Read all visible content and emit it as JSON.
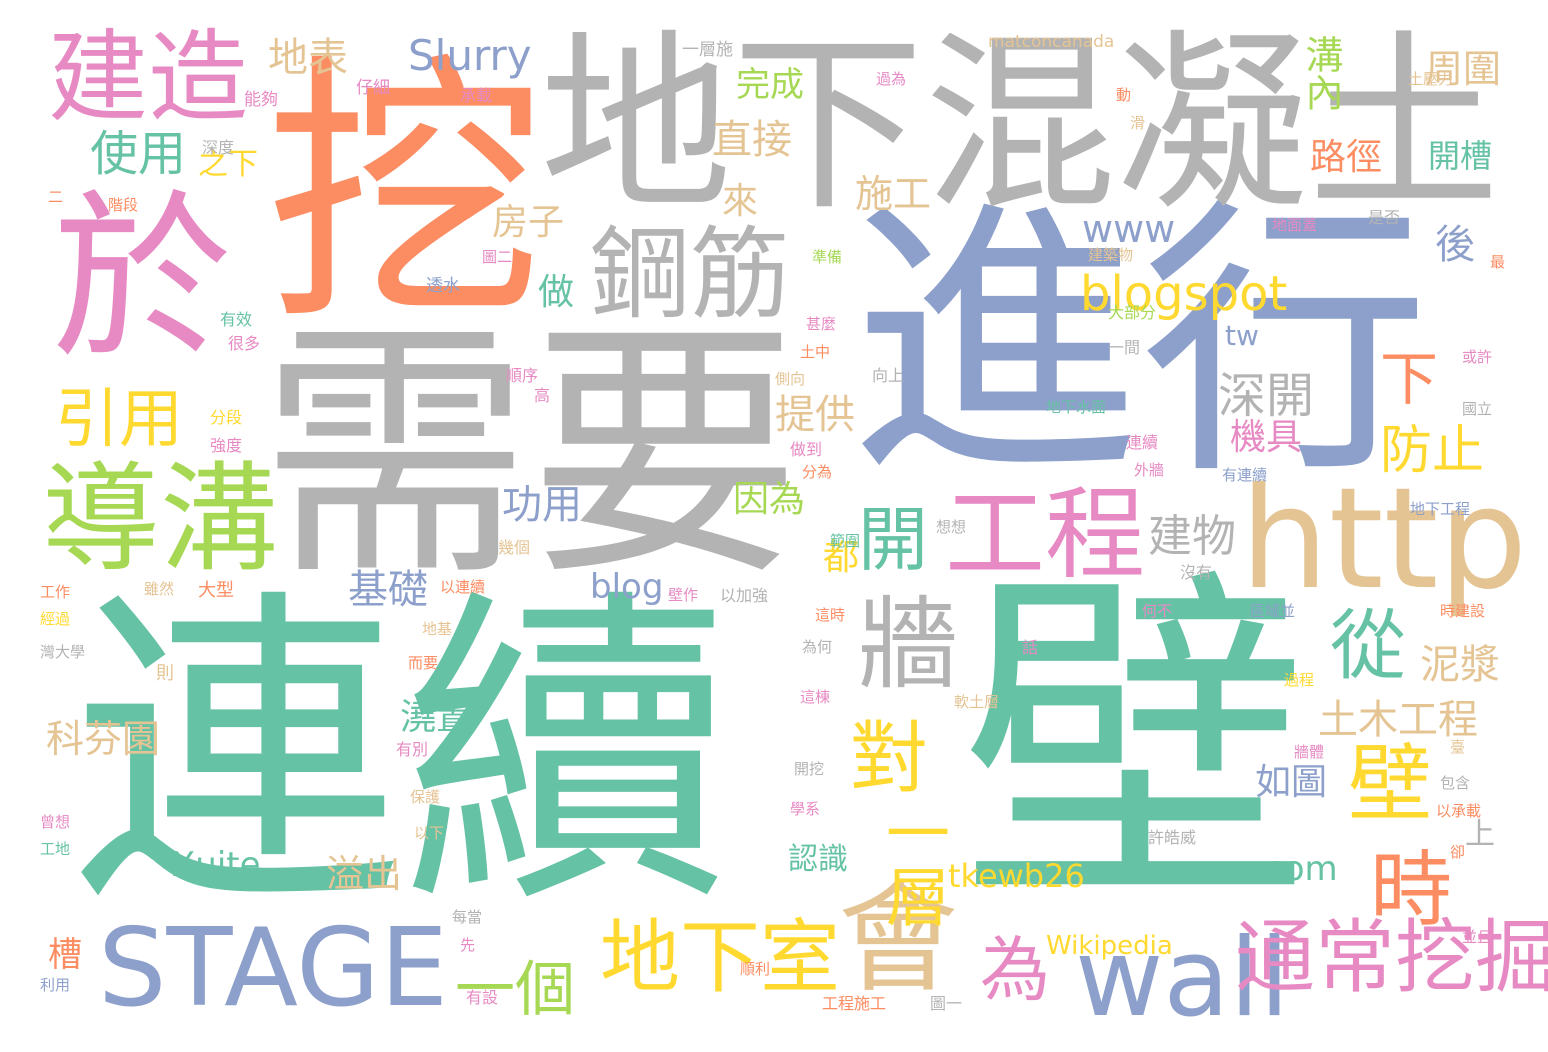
{
  "palette": {
    "teal": "#66C2A5",
    "orange": "#FC8D62",
    "blue": "#8DA0CB",
    "pink": "#E78AC3",
    "green": "#A6D854",
    "yellow": "#FFD92F",
    "tan": "#E5C494",
    "gray": "#B3B3B3"
  },
  "words": {
    "w01": "連續",
    "w02": "壁",
    "w03": "需要",
    "w04": "進行",
    "w05": "挖",
    "w06": "地下混凝土",
    "w07": "於",
    "w08": "建造",
    "w09": "鋼筋",
    "w10": "導溝",
    "w11": "http",
    "w12": "工程",
    "w13": "STAGE",
    "w14": "地下室",
    "w15": "wall",
    "w16": "通常挖掘",
    "w17": "會",
    "w18": "牆",
    "w19": "從",
    "w20": "開",
    "w21": "對",
    "w22": "一層",
    "w23": "時",
    "w24": "為",
    "w25": "一個",
    "w26": "引用",
    "w27": "使用",
    "w28": "blogspot",
    "w29": "深開",
    "w30": "防止",
    "w31": "Slurry",
    "w32": "地表",
    "w33": "溝內",
    "w34": "周圍",
    "w35": "直接",
    "w36": "施工",
    "w37": "完成",
    "w38": "路徑",
    "w39": "開槽",
    "w40": "後",
    "w41": "www",
    "w42": "房子",
    "w43": "做",
    "w44": "提供",
    "w45": "機具",
    "w46": "功用",
    "w47": "因為",
    "w48": "建物",
    "w49": "基礎",
    "w50": "泥漿",
    "w51": "土木工程",
    "w52": "如圖",
    "w53": "科芬園",
    "w54": "澆置",
    "w55": "溢出",
    "w56": "Xuite",
    "w57": "認識",
    "w58": "tkewb26",
    "w59": "com",
    "w60": "blog",
    "w61": "Wikipedia",
    "w62": "槽",
    "w63": "tw",
    "w64": "下",
    "w65": "都",
    "w66": "之下",
    "w67": "來",
    "w68": "上",
    "w69": "matconcanada",
    "w70": "一層施",
    "w71": "土壓力",
    "w72": "承載",
    "w73": "仔細",
    "w74": "能夠",
    "w75": "深度",
    "w76": "階段",
    "w77": "透水",
    "w78": "有效",
    "w79": "很多",
    "w80": "分段",
    "w81": "強度",
    "w82": "甚麼",
    "w83": "土中",
    "w84": "向上",
    "w85": "一間",
    "w86": "大部分",
    "w87": "準備",
    "w88": "建築物",
    "w89": "地面蓋",
    "w90": "是否",
    "w91": "或許",
    "w92": "國立",
    "w93": "地下水面",
    "w94": "連續",
    "w95": "有連續",
    "w96": "外牆",
    "w97": "地下工程",
    "w98": "分為",
    "w99": "做到",
    "w100": "順序",
    "w101": "高",
    "w102": "工作",
    "w103": "經過",
    "w104": "大型",
    "w105": "雖然",
    "w106": "以連續",
    "w107": "幾個",
    "w108": "以加強",
    "w109": "壁作",
    "w110": "沒有",
    "w111": "這時",
    "w112": "何不",
    "w113": "區域並",
    "w114": "時建設",
    "w115": "地基",
    "w116": "而要",
    "w117": "灣大學",
    "w118": "則",
    "w119": "為何",
    "w120": "這棟",
    "w121": "軟土層",
    "w122": "過程",
    "w123": "牆體",
    "w124": "包含",
    "w125": "以承載",
    "w126": "許皓威",
    "w127": "曾想",
    "w128": "工地",
    "w129": "保護",
    "w130": "以下",
    "w131": "有別",
    "w132": "開挖",
    "w133": "學系",
    "w134": "地下水",
    "w135": "每當",
    "w136": "先",
    "w137": "有設",
    "w138": "工程施工",
    "w139": "圖一",
    "w140": "順利",
    "w141": "利用",
    "w142": "並且",
    "w143": "卻",
    "w144": "話",
    "w145": "想想",
    "w146": "範圍",
    "w147": "二",
    "w148": "最",
    "w149": "過為",
    "w150": "動",
    "w151": "滑",
    "w152": "圖二",
    "w153": "側向",
    "w154": "臺"
  }
}
